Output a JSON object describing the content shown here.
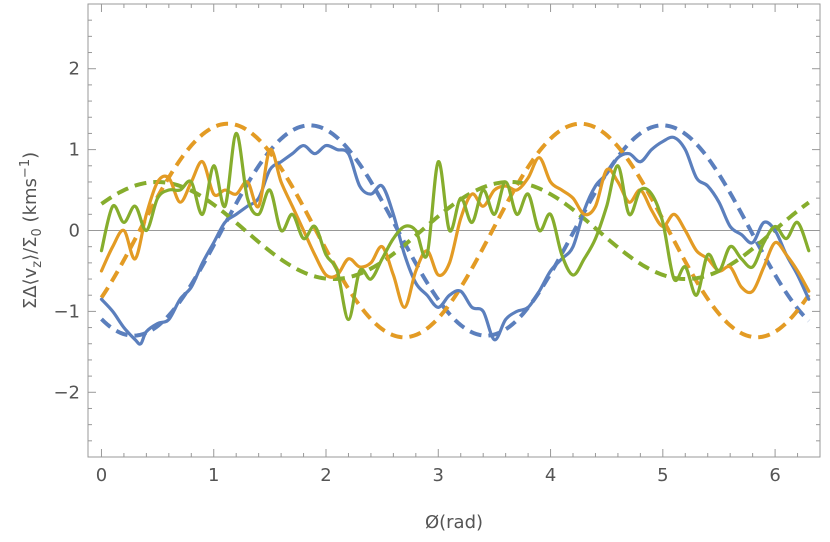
{
  "chart_data": {
    "type": "line",
    "xlabel": "Ø(rad)",
    "ylabel": "ΣΔ⟨v_z⟩/Σ_0 (kms^-1)",
    "xlim": [
      -0.12,
      6.4
    ],
    "ylim": [
      -2.8,
      2.8
    ],
    "xticks": [
      "0",
      "1",
      "2",
      "3",
      "4",
      "5",
      "6"
    ],
    "yticks": [
      "2",
      "1",
      "0",
      "−1",
      "−2"
    ],
    "grid": false,
    "legend": "none",
    "colors": {
      "blue": "#5b7fbd",
      "orange": "#e39b24",
      "green": "#86ad2d",
      "zero_line": "#999999"
    },
    "series": [
      {
        "style": "dashed",
        "color": "#5b7fbd",
        "function": "A*sin(2*(x-phase))",
        "amplitude": 1.3,
        "phase": 1.07
      },
      {
        "style": "dashed",
        "color": "#e39b24",
        "function": "A*sin(2*(x-phase))",
        "amplitude": 1.32,
        "phase": 0.34
      },
      {
        "style": "dashed",
        "color": "#86ad2d",
        "function": "A*sin(2*(x-phase))",
        "amplitude": 0.6,
        "phase": -0.29
      },
      {
        "style": "solid",
        "color": "#5b7fbd",
        "x": [
          0.0,
          0.1,
          0.2,
          0.3,
          0.35,
          0.4,
          0.5,
          0.6,
          0.7,
          0.8,
          0.9,
          1.0,
          1.1,
          1.2,
          1.3,
          1.4,
          1.5,
          1.6,
          1.7,
          1.8,
          1.9,
          2.0,
          2.1,
          2.2,
          2.3,
          2.4,
          2.5,
          2.6,
          2.7,
          2.8,
          2.9,
          3.0,
          3.1,
          3.2,
          3.3,
          3.4,
          3.5,
          3.6,
          3.7,
          3.8,
          3.9,
          4.0,
          4.1,
          4.2,
          4.3,
          4.4,
          4.5,
          4.6,
          4.7,
          4.8,
          4.9,
          5.0,
          5.1,
          5.2,
          5.3,
          5.4,
          5.5,
          5.6,
          5.7,
          5.8,
          5.9,
          6.0,
          6.1,
          6.2,
          6.3
        ],
        "y": [
          -0.85,
          -1.0,
          -1.2,
          -1.35,
          -1.4,
          -1.25,
          -1.15,
          -1.1,
          -0.85,
          -0.7,
          -0.4,
          -0.15,
          0.1,
          0.2,
          0.3,
          0.4,
          0.75,
          0.85,
          0.95,
          1.05,
          0.95,
          1.05,
          1.0,
          0.95,
          0.55,
          0.45,
          0.55,
          0.2,
          -0.3,
          -0.65,
          -0.8,
          -0.95,
          -0.8,
          -0.75,
          -0.95,
          -1.0,
          -1.35,
          -1.1,
          -1.0,
          -0.95,
          -0.75,
          -0.5,
          -0.35,
          -0.2,
          0.25,
          0.55,
          0.7,
          0.9,
          0.95,
          0.85,
          1.0,
          1.1,
          1.15,
          1.0,
          0.65,
          0.55,
          0.35,
          0.05,
          -0.05,
          -0.15,
          0.1,
          0.0,
          -0.3,
          -0.55,
          -0.85
        ]
      },
      {
        "style": "solid",
        "color": "#e39b24",
        "x": [
          0.0,
          0.1,
          0.2,
          0.3,
          0.4,
          0.5,
          0.6,
          0.7,
          0.8,
          0.9,
          1.0,
          1.1,
          1.2,
          1.3,
          1.4,
          1.5,
          1.6,
          1.7,
          1.8,
          1.9,
          2.0,
          2.1,
          2.2,
          2.3,
          2.4,
          2.5,
          2.6,
          2.7,
          2.8,
          2.9,
          3.0,
          3.1,
          3.2,
          3.3,
          3.4,
          3.5,
          3.6,
          3.7,
          3.8,
          3.9,
          4.0,
          4.1,
          4.2,
          4.3,
          4.4,
          4.5,
          4.6,
          4.7,
          4.8,
          4.9,
          5.0,
          5.1,
          5.2,
          5.3,
          5.4,
          5.5,
          5.6,
          5.7,
          5.8,
          5.9,
          6.0,
          6.1,
          6.2,
          6.3
        ],
        "y": [
          -0.5,
          -0.2,
          0.0,
          -0.35,
          0.2,
          0.6,
          0.65,
          0.35,
          0.6,
          0.85,
          0.45,
          0.5,
          0.45,
          0.6,
          0.3,
          1.0,
          0.6,
          0.3,
          0.0,
          -0.3,
          -0.55,
          -0.55,
          -0.35,
          -0.45,
          -0.4,
          -0.2,
          -0.55,
          -0.95,
          -0.5,
          -0.25,
          -0.55,
          -0.4,
          0.15,
          0.45,
          0.3,
          0.5,
          0.55,
          0.5,
          0.65,
          0.9,
          0.6,
          0.5,
          0.4,
          0.2,
          0.3,
          0.75,
          0.6,
          0.35,
          0.5,
          0.25,
          0.05,
          0.2,
          0.0,
          -0.25,
          -0.35,
          -0.5,
          -0.45,
          -0.7,
          -0.75,
          -0.45,
          -0.15,
          -0.3,
          -0.5,
          -0.75
        ]
      },
      {
        "style": "solid",
        "color": "#86ad2d",
        "x": [
          0.0,
          0.1,
          0.2,
          0.3,
          0.4,
          0.5,
          0.6,
          0.7,
          0.8,
          0.9,
          1.0,
          1.1,
          1.2,
          1.3,
          1.4,
          1.5,
          1.6,
          1.7,
          1.8,
          1.9,
          2.0,
          2.1,
          2.2,
          2.3,
          2.4,
          2.5,
          2.6,
          2.7,
          2.8,
          2.9,
          3.0,
          3.1,
          3.2,
          3.3,
          3.4,
          3.5,
          3.6,
          3.7,
          3.8,
          3.9,
          4.0,
          4.1,
          4.2,
          4.3,
          4.4,
          4.5,
          4.6,
          4.7,
          4.8,
          4.9,
          5.0,
          5.1,
          5.2,
          5.3,
          5.4,
          5.5,
          5.6,
          5.7,
          5.8,
          5.9,
          6.0,
          6.1,
          6.2,
          6.3
        ],
        "y": [
          -0.25,
          0.3,
          0.1,
          0.3,
          0.0,
          0.4,
          0.5,
          0.5,
          0.6,
          0.2,
          0.8,
          0.3,
          1.2,
          0.4,
          0.2,
          0.5,
          0.0,
          0.2,
          -0.1,
          0.05,
          -0.3,
          -0.5,
          -1.1,
          -0.5,
          -0.6,
          -0.35,
          -0.1,
          0.05,
          0.0,
          -0.3,
          0.85,
          0.0,
          0.4,
          0.1,
          0.5,
          0.2,
          0.6,
          0.2,
          0.45,
          0.0,
          0.2,
          -0.3,
          -0.55,
          -0.35,
          -0.1,
          0.3,
          0.8,
          0.2,
          0.5,
          0.45,
          0.1,
          -0.6,
          -0.45,
          -0.8,
          -0.3,
          -0.5,
          -0.2,
          -0.35,
          -0.45,
          -0.15,
          0.05,
          -0.1,
          0.1,
          -0.25
        ]
      }
    ]
  }
}
